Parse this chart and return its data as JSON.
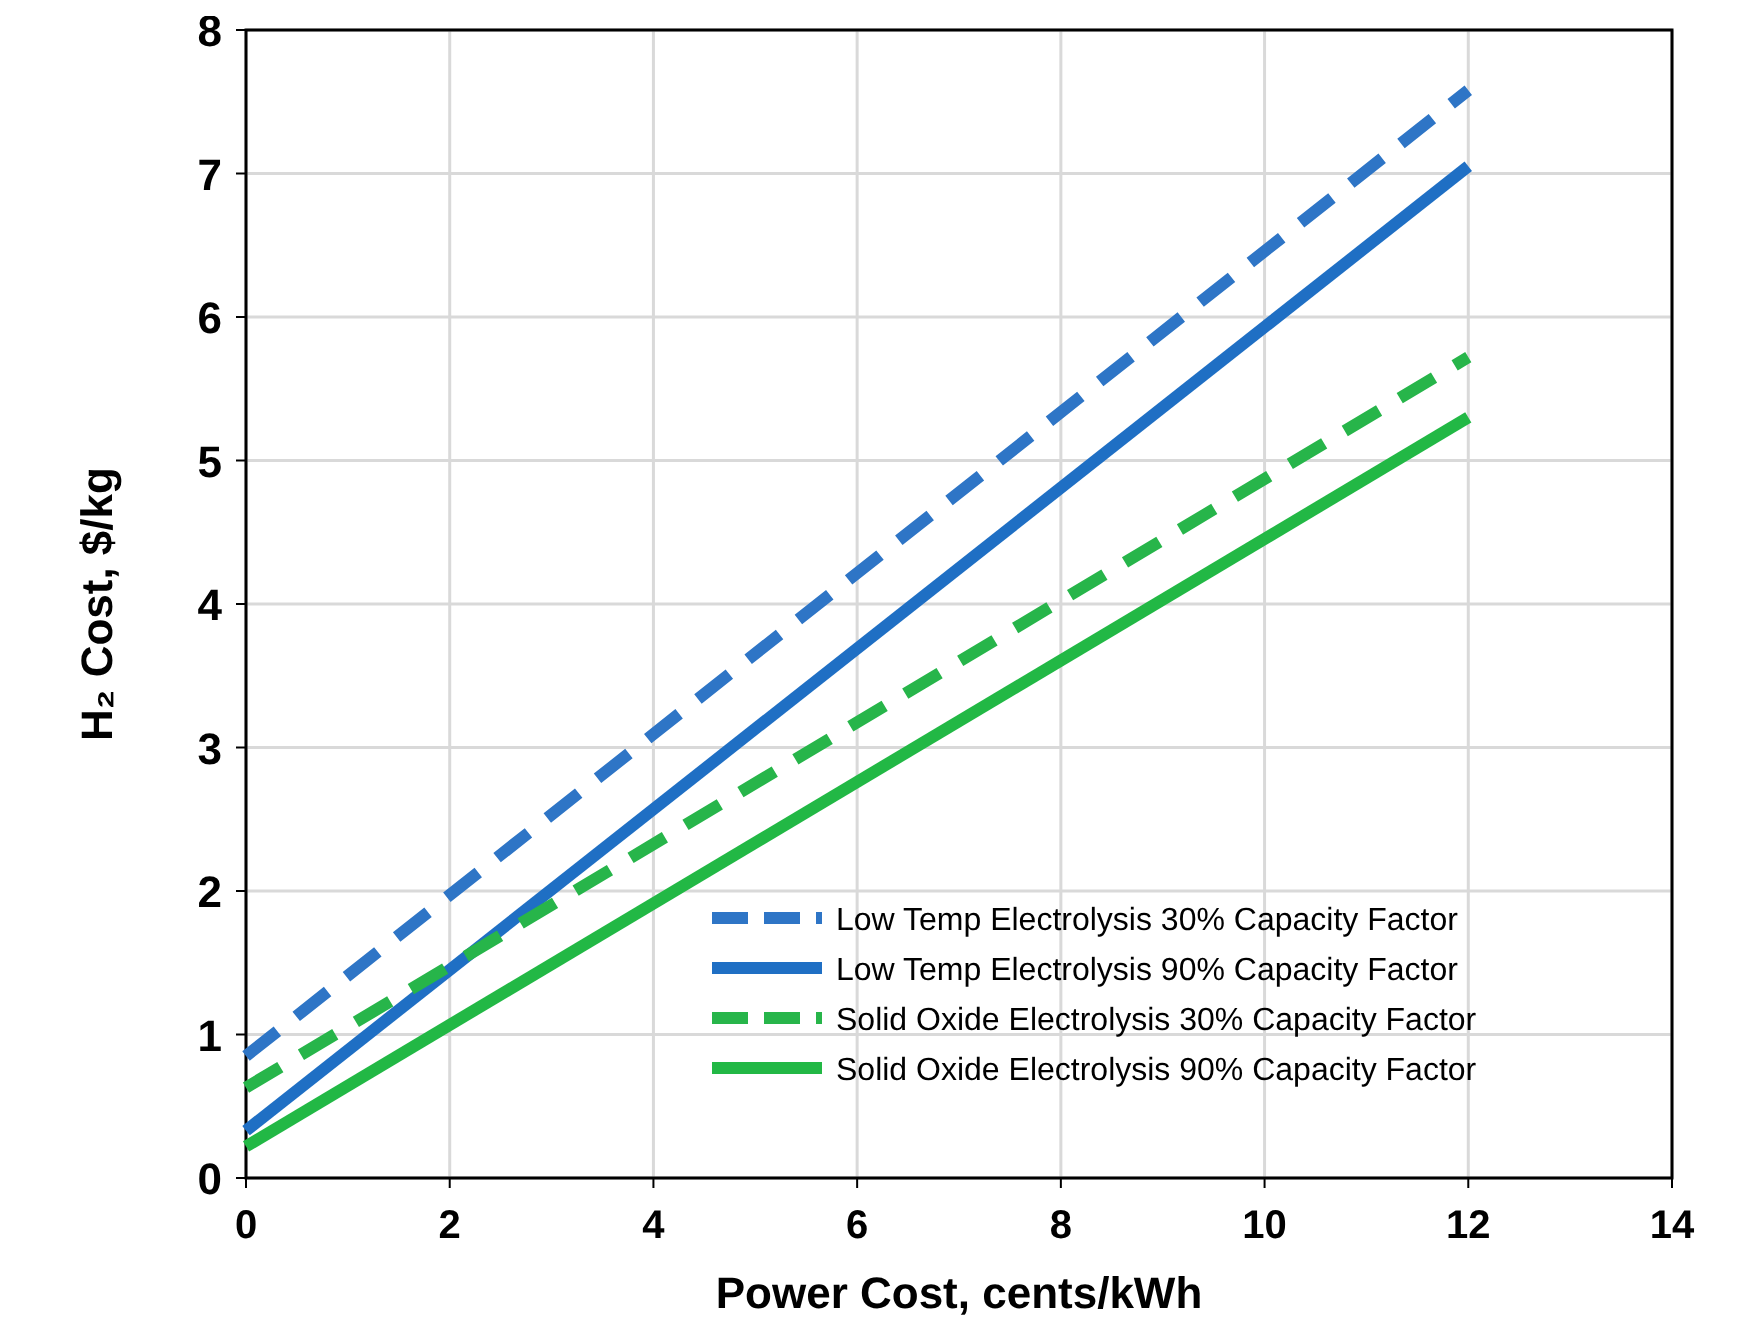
{
  "chart_data": {
    "type": "line",
    "xlabel": "Power Cost, cents/kWh",
    "ylabel": "H₂ Cost, $/kg",
    "xlim": [
      0,
      14
    ],
    "xticks": [
      0,
      2,
      4,
      6,
      8,
      10,
      12,
      14
    ],
    "ylim": [
      0,
      8
    ],
    "yticks": [
      0,
      1,
      2,
      3,
      4,
      5,
      6,
      7,
      8
    ],
    "grid": true,
    "legend": "bottom right",
    "marker": "none",
    "x": [
      0,
      12
    ],
    "series": [
      {
        "name": "Low Temp Electrolysis 30% Capacity Factor",
        "color": "#2e75c6",
        "values": [
          0.85,
          7.58
        ],
        "line_style": "dashed"
      },
      {
        "name": "Low Temp Electrolysis 90% Capacity Factor",
        "color": "#1f6fc4",
        "values": [
          0.33,
          7.05
        ],
        "line_style": "solid"
      },
      {
        "name": "Solid Oxide Electrolysis 30% Capacity Factor",
        "color": "#27b54a",
        "values": [
          0.63,
          5.72
        ],
        "line_style": "dashed"
      },
      {
        "name": "Solid Oxide Electrolysis 90% Capacity Factor",
        "color": "#22b845",
        "values": [
          0.22,
          5.3
        ],
        "line_style": "solid"
      }
    ]
  }
}
